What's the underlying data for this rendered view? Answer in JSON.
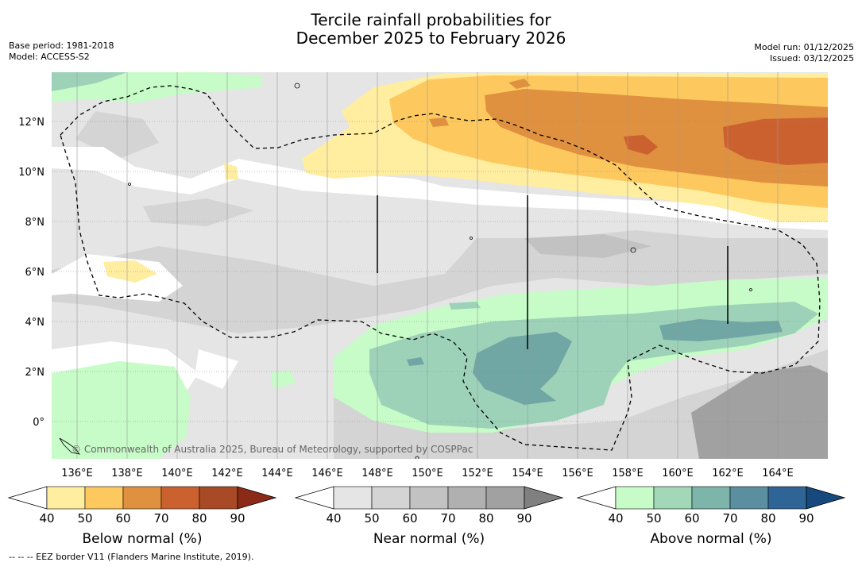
{
  "title_line1": "Tercile rainfall probabilities for",
  "title_line2": "December 2025 to February 2026",
  "meta_left": {
    "base_period": "Base period: 1981-2018",
    "model": "Model: ACCESS-S2"
  },
  "meta_right": {
    "model_run": "Model run: 01/12/2025",
    "issued": "Issued: 03/12/2025"
  },
  "map": {
    "lat_labels": [
      "12°N",
      "10°N",
      "8°N",
      "6°N",
      "4°N",
      "2°N",
      "0°"
    ],
    "lon_labels": [
      "136°E",
      "138°E",
      "140°E",
      "142°E",
      "144°E",
      "146°E",
      "148°E",
      "150°E",
      "152°E",
      "154°E",
      "156°E",
      "158°E",
      "160°E",
      "162°E",
      "164°E"
    ],
    "copyright": "© Commonwealth of Australia 2025, Bureau of Meteorology, supported by COSPPac"
  },
  "colorbars": [
    {
      "label": "Below normal (%)",
      "ticks": [
        "40",
        "50",
        "60",
        "70",
        "80",
        "90"
      ],
      "colors": [
        "#ffeda0",
        "#fdc95e",
        "#e0913f",
        "#cc6130",
        "#a84a25",
        "#8b2a16"
      ]
    },
    {
      "label": "Near normal (%)",
      "ticks": [
        "40",
        "50",
        "60",
        "70",
        "80",
        "90"
      ],
      "colors": [
        "#e5e5e5",
        "#d4d4d4",
        "#c2c2c2",
        "#b0b0b0",
        "#a1a1a1",
        "#808080"
      ]
    },
    {
      "label": "Above normal (%)",
      "ticks": [
        "40",
        "50",
        "60",
        "70",
        "80",
        "90"
      ],
      "colors": [
        "#c7fcc8",
        "#a2d8b7",
        "#7db5ab",
        "#5b8fa0",
        "#2f6596",
        "#164a7e"
      ]
    }
  ],
  "footer": "--  --  -- EEZ border V11 (Flanders Marine Institute, 2019).",
  "colors": {
    "below": [
      "#ffeda0",
      "#fdc95e",
      "#e0913f",
      "#cc6130"
    ],
    "near": [
      "#e5e5e5",
      "#d4d4d4",
      "#c2c2c2",
      "#a1a1a1"
    ],
    "above": [
      "#c7fcc8",
      "#9dd2b9",
      "#70a6a4",
      "#5b8fa0"
    ]
  }
}
